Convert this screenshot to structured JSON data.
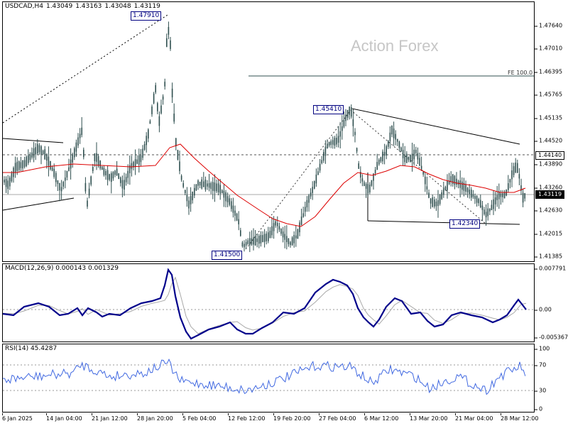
{
  "header": {
    "symbol": "USDCAD,H4",
    "open": "1.43049",
    "high": "1.43163",
    "low": "1.43048",
    "close": "1.43119"
  },
  "watermark": "Action Forex",
  "main": {
    "y_ticks": [
      "1.47640",
      "1.47010",
      "1.46395",
      "1.45765",
      "1.45135",
      "1.44520",
      "1.43890",
      "1.43260",
      "1.42630",
      "1.42015",
      "1.41385"
    ],
    "current_price": "1.43119",
    "resistance_price": "1.44140",
    "fe_label": "FE 100.0",
    "price_labels": [
      "1.47910",
      "1.45410",
      "1.42340",
      "1.41500"
    ]
  },
  "macd": {
    "label": "MACD(12,26,9) 0.000143 0.001329",
    "y_ticks": [
      "0.007791",
      "0.00",
      "-0.005367"
    ]
  },
  "rsi": {
    "label": "RSI(14) 45.4287",
    "y_ticks": [
      "100",
      "70",
      "30",
      "0"
    ]
  },
  "x_ticks": [
    "6 Jan 2025",
    "14 Jan 04:00",
    "21 Jan 12:00",
    "28 Jan 20:00",
    "5 Feb 04:00",
    "12 Feb 12:00",
    "19 Feb 20:00",
    "27 Feb 04:00",
    "6 Mar 12:00",
    "13 Mar 20:00",
    "21 Mar 04:00",
    "28 Mar 12:00"
  ],
  "colors": {
    "candles": "#2f4f4f",
    "moving_average": "#dd0000",
    "macd_line": "#00008b",
    "macd_signal": "#a9a9a9",
    "rsi_line": "#4169e1",
    "price_label": "#000080"
  },
  "chart_data": [
    {
      "type": "candlestick",
      "title": "USDCAD,H4",
      "ylim": [
        1.4125,
        1.4802
      ],
      "pivots": [
        {
          "label": "1.47910",
          "value": 1.4791,
          "date": "3 Feb 2025"
        },
        {
          "label": "1.41500",
          "value": 1.415,
          "date": "14 Feb 2025"
        },
        {
          "label": "1.45410",
          "value": 1.4541,
          "date": "3 Mar 2025"
        },
        {
          "label": "1.42340",
          "value": 1.4234,
          "date": "24 Mar 2025"
        }
      ],
      "fe_level": {
        "label": "FE 100.0",
        "value": 1.4627
      },
      "resistance_level": 1.4414,
      "last_close": 1.43119
    },
    {
      "type": "line",
      "title": "MACD(12,26,9)",
      "series": [
        {
          "name": "MACD(12,26,9)",
          "last": 0.000143
        },
        {
          "name": "signal",
          "last": 0.001329
        }
      ],
      "ylim": [
        -0.005367,
        0.007791
      ]
    },
    {
      "type": "line",
      "title": "RSI(14)",
      "series": [
        {
          "name": "RSI(14)",
          "last": 45.4287
        }
      ],
      "ylim": [
        0,
        100
      ],
      "levels": [
        70,
        30
      ]
    }
  ]
}
